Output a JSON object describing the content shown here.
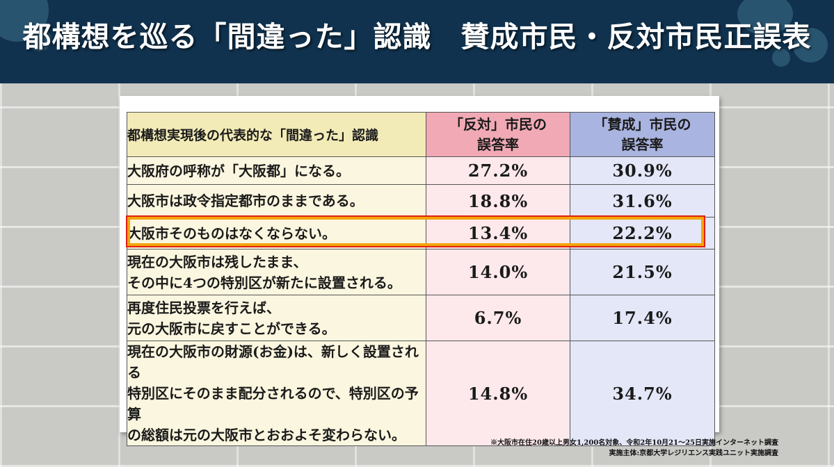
{
  "header": {
    "title": "都構想を巡る「間違った」認識　賛成市民・反対市民正誤表"
  },
  "table": {
    "headers": {
      "statement": "都構想実現後の代表的な「間違った」認識",
      "oppose_line1": "「反対」市民の",
      "oppose_line2": "誤答率",
      "support_line1": "「賛成」市民の",
      "support_line2": "誤答率"
    },
    "rows": [
      {
        "lines": [
          "大阪府の呼称が「大阪都」になる。"
        ],
        "oppose": "27.2%",
        "support": "30.9%",
        "highlighted": false
      },
      {
        "lines": [
          "大阪市は政令指定都市のままである。"
        ],
        "oppose": "18.8%",
        "support": "31.6%",
        "highlighted": false
      },
      {
        "lines": [
          "大阪市そのものはなくならない。"
        ],
        "oppose": "13.4%",
        "support": "22.2%",
        "highlighted": true
      },
      {
        "lines": [
          "現在の大阪市は残したまま、",
          "その中に4つの特別区が新たに設置される。"
        ],
        "oppose": "14.0%",
        "support": "21.5%",
        "highlighted": false
      },
      {
        "lines": [
          "再度住民投票を行えば、",
          "元の大阪市に戻すことができる。"
        ],
        "oppose": "6.7%",
        "support": "17.4%",
        "highlighted": false
      },
      {
        "lines": [
          "現在の大阪市の財源(お金)は、新しく設置される",
          "特別区にそのまま配分されるので、特別区の予算",
          "の総額は元の大阪市とおおよそ変わらない。"
        ],
        "oppose": "14.8%",
        "support": "34.7%",
        "highlighted": false
      }
    ]
  },
  "footnote": {
    "line1": "※大阪市在住20歳以上男女1,200名対象、令和2年10月21〜25日実施インターネット調査",
    "line2": "実施主体:京都大学レジリエンス実践ユニット実施調査"
  },
  "colors": {
    "header_bg": "#10324e",
    "statement_header": "#f3ebb7",
    "oppose_header": "#f1aab5",
    "support_header": "#a9b4e0",
    "highlight_border": "#f2a50c"
  }
}
